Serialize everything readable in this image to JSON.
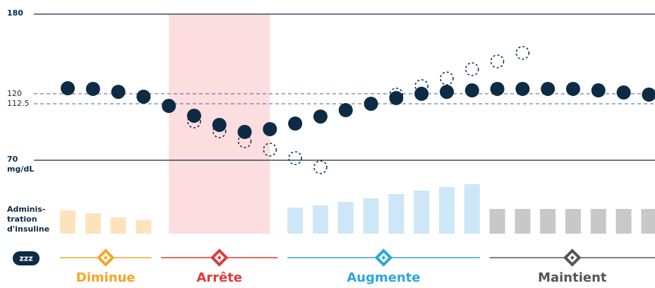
{
  "chart_data": {
    "type": "scatter",
    "yticks": [
      180,
      120,
      112.5,
      70
    ],
    "y_line_styles": [
      "solid",
      "dashed",
      "dashed",
      "solid"
    ],
    "ylim": [
      70,
      180
    ],
    "y_unit": "mg/dL",
    "series": [
      {
        "color": "#0d2b45",
        "style": "filled",
        "values": [
          124.2,
          123.7,
          121.5,
          117.8,
          110.9,
          103.5,
          96.6,
          91.3,
          93.4,
          97.6,
          102.9,
          107.7,
          112.5,
          116.8,
          120,
          121.5,
          122.6,
          123.7,
          123.7,
          123.7,
          123.7,
          122.6,
          121,
          119.4
        ]
      },
      {
        "color": "#0d2b45",
        "style": "dashed",
        "values": [
          null,
          null,
          null,
          null,
          null,
          99.2,
          91.8,
          84.3,
          78,
          71.6,
          64.7,
          null,
          null,
          119.4,
          125.8,
          131.6,
          138.5,
          144.4,
          150.8,
          null,
          null,
          null,
          null,
          null
        ]
      }
    ],
    "insulin_label": [
      "Adminis-",
      "tration",
      "d'insuline"
    ],
    "insulin": [
      33,
      29,
      23,
      19,
      null,
      null,
      null,
      null,
      null,
      37,
      40,
      45,
      50,
      56,
      61,
      66,
      70,
      35,
      35,
      35,
      35,
      35,
      35,
      35
    ],
    "sleep_icon": "zzz",
    "phases": [
      {
        "label": "Diminue",
        "color": "#f5a623",
        "bar_color": "#fde3bd",
        "start": 0,
        "end": 3
      },
      {
        "label": "Arrête",
        "color": "#e03a3a",
        "band_color": "#fcdde0",
        "start": 4,
        "end": 8
      },
      {
        "label": "Augmente",
        "color": "#2aa7df",
        "bar_color": "#cde7f8",
        "start": 9,
        "end": 16
      },
      {
        "label": "Maintient",
        "color": "#555555",
        "bar_color": "#c8c8c8",
        "start": 17,
        "end": 23
      }
    ]
  }
}
